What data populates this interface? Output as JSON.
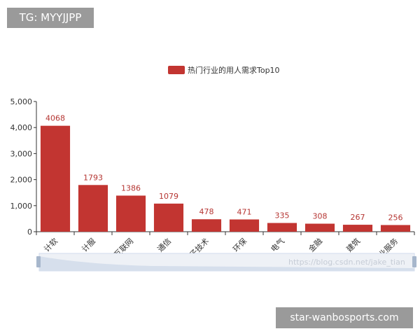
{
  "watermark_top": "TG: MYYJJPP",
  "watermark_bottom": "star-wanbosports.com",
  "overlay_url": "https://blog.csdn.net/jake_tian",
  "colors": {
    "bar": "#c23531",
    "axis": "#333333",
    "value_label": "#b53532"
  },
  "chart_data": {
    "type": "bar",
    "title": "",
    "xlabel": "",
    "ylabel": "",
    "legend": [
      "热门行业的用人需求Top10"
    ],
    "legend_position": "top-center",
    "categories": [
      "计软",
      "计服",
      "互联网",
      "通信",
      "电子技术",
      "环保",
      "电气",
      "金融",
      "建筑",
      "专业服务"
    ],
    "series": [
      {
        "name": "热门行业的用人需求Top10",
        "values": [
          4068,
          1793,
          1386,
          1079,
          478,
          471,
          335,
          308,
          267,
          256
        ]
      }
    ],
    "yticks": [
      "0",
      "1,000",
      "2,000",
      "3,000",
      "4,000",
      "5,000"
    ],
    "ylim": [
      0,
      5000
    ],
    "grid": false,
    "data_zoom": true
  }
}
